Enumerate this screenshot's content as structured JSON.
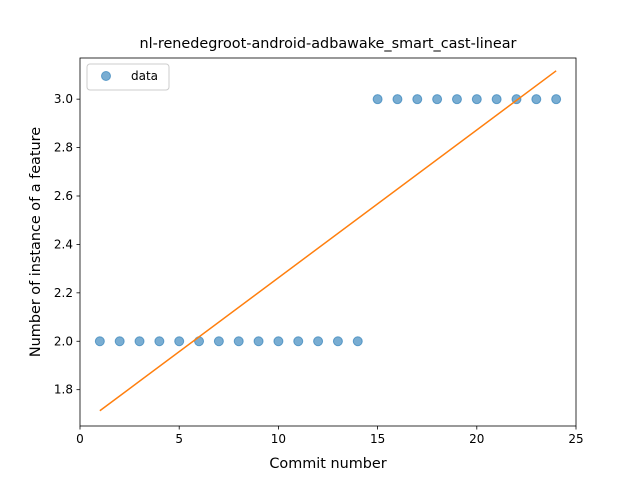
{
  "chart_data": {
    "type": "scatter",
    "title": "nl-renedegroot-android-adbawake_smart_cast-linear",
    "xlabel": "Commit number",
    "ylabel": "Number of instance of a feature",
    "xlim": [
      0,
      25
    ],
    "ylim": [
      1.65,
      3.17
    ],
    "xticks": [
      0,
      5,
      10,
      15,
      20,
      25
    ],
    "yticks": [
      1.8,
      2.0,
      2.2,
      2.4,
      2.6,
      2.8,
      3.0
    ],
    "ytick_labels": [
      "1.8",
      "2.0",
      "2.2",
      "2.4",
      "2.6",
      "2.8",
      "3.0"
    ],
    "legend_position": "upper-left",
    "series": [
      {
        "name": "data",
        "kind": "scatter",
        "color": "#1f77b4",
        "x": [
          1,
          2,
          3,
          4,
          5,
          6,
          7,
          8,
          9,
          10,
          11,
          12,
          13,
          14,
          15,
          16,
          17,
          18,
          19,
          20,
          21,
          22,
          23,
          24
        ],
        "y": [
          2,
          2,
          2,
          2,
          2,
          2,
          2,
          2,
          2,
          2,
          2,
          2,
          2,
          2,
          3,
          3,
          3,
          3,
          3,
          3,
          3,
          3,
          3,
          3
        ]
      },
      {
        "kind": "line",
        "color": "#ff7f0e",
        "x": [
          1,
          24
        ],
        "y": [
          1.713,
          3.117
        ]
      }
    ]
  }
}
